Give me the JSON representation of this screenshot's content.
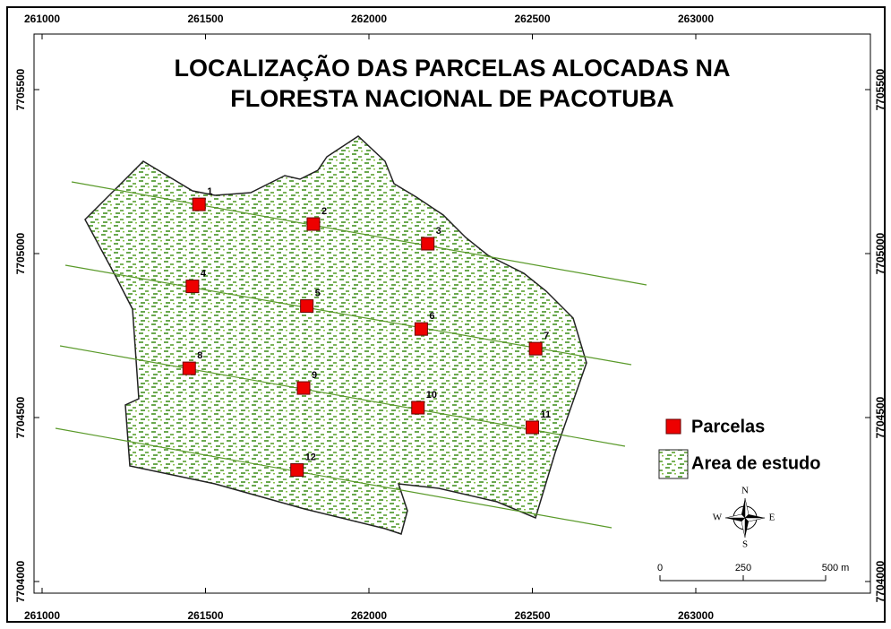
{
  "title": [
    "LOCALIZAÇÃO DAS PARCELAS ALOCADAS NA",
    "FLORESTA NACIONAL DE PACOTUBA"
  ],
  "xticks": [
    261000,
    261500,
    262000,
    262500,
    263000
  ],
  "yticks": [
    7705500,
    7705000,
    7704500,
    7704000
  ],
  "plots": [
    {
      "label": "1",
      "x": 261480,
      "y": 7705150
    },
    {
      "label": "2",
      "x": 261830,
      "y": 7705090
    },
    {
      "label": "3",
      "x": 262180,
      "y": 7705030
    },
    {
      "label": "4",
      "x": 261460,
      "y": 7704900
    },
    {
      "label": "5",
      "x": 261810,
      "y": 7704840
    },
    {
      "label": "6",
      "x": 262160,
      "y": 7704770
    },
    {
      "label": "7",
      "x": 262510,
      "y": 7704710
    },
    {
      "label": "8",
      "x": 261450,
      "y": 7704650
    },
    {
      "label": "9",
      "x": 261800,
      "y": 7704590
    },
    {
      "label": "10",
      "x": 262150,
      "y": 7704530
    },
    {
      "label": "11",
      "x": 262500,
      "y": 7704470
    },
    {
      "label": "12",
      "x": 261780,
      "y": 7704340
    }
  ],
  "legend": [
    "Parcelas",
    "Area de estudo"
  ],
  "compass": {
    "n": "N",
    "s": "S",
    "e": "E",
    "w": "W"
  },
  "scale": [
    "0",
    "250",
    "500 m"
  ]
}
